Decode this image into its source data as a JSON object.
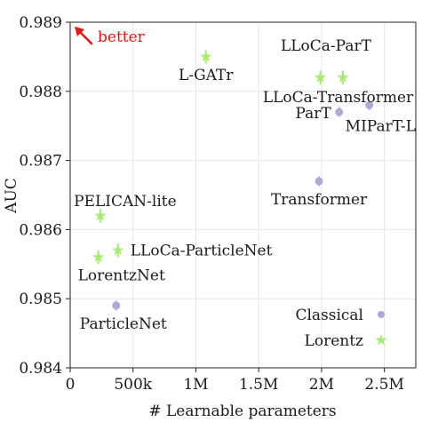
{
  "chart_data": {
    "type": "scatter",
    "xlabel": "# Learnable parameters",
    "ylabel": "AUC",
    "xlim": [
      0,
      2750000
    ],
    "ylim": [
      0.984,
      0.989
    ],
    "xticks": [
      {
        "value": 0,
        "label": "0"
      },
      {
        "value": 500000,
        "label": "500k"
      },
      {
        "value": 1000000,
        "label": "1M"
      },
      {
        "value": 1500000,
        "label": "1.5M"
      },
      {
        "value": 2000000,
        "label": "2M"
      },
      {
        "value": 2500000,
        "label": "2.5M"
      }
    ],
    "yticks": [
      {
        "value": 0.984,
        "label": "0.984"
      },
      {
        "value": 0.985,
        "label": "0.985"
      },
      {
        "value": 0.986,
        "label": "0.986"
      },
      {
        "value": 0.987,
        "label": "0.987"
      },
      {
        "value": 0.988,
        "label": "0.988"
      },
      {
        "value": 0.989,
        "label": "0.989"
      }
    ],
    "grid": true,
    "legend_position": "bottom-right",
    "annotation": {
      "text": "better",
      "color": "#ee1111"
    },
    "series": [
      {
        "name": "Classical",
        "marker": "circle",
        "color": "#b0a8d6",
        "points": [
          {
            "label": "Transformer",
            "x": 1980000,
            "y": 0.9867,
            "err": 7e-05
          },
          {
            "label": "ParT",
            "x": 2140000,
            "y": 0.9877,
            "err": 7e-05
          },
          {
            "label": "MIParT-L",
            "x": 2380000,
            "y": 0.9878,
            "err": 7e-05
          },
          {
            "label": "ParticleNet",
            "x": 366000,
            "y": 0.9849,
            "err": 7e-05
          }
        ]
      },
      {
        "name": "Lorentz",
        "marker": "star",
        "color": "#a8ec70",
        "points": [
          {
            "label": "L-GATr",
            "x": 1080000,
            "y": 0.9885,
            "err": 0.0001
          },
          {
            "label": "LLoCa-ParT",
            "x": 2170000,
            "y": 0.9882,
            "err": 0.0001
          },
          {
            "label": "LLoCa-Transformer",
            "x": 1990000,
            "y": 0.9882,
            "err": 0.0001
          },
          {
            "label": "PELICAN-lite",
            "x": 240000,
            "y": 0.9862,
            "err": 0.0001
          },
          {
            "label": "LLoCa-ParticleNet",
            "x": 380000,
            "y": 0.9857,
            "err": 0.0001
          },
          {
            "label": "LorentzNet",
            "x": 224000,
            "y": 0.9856,
            "err": 0.0001
          }
        ]
      }
    ]
  }
}
